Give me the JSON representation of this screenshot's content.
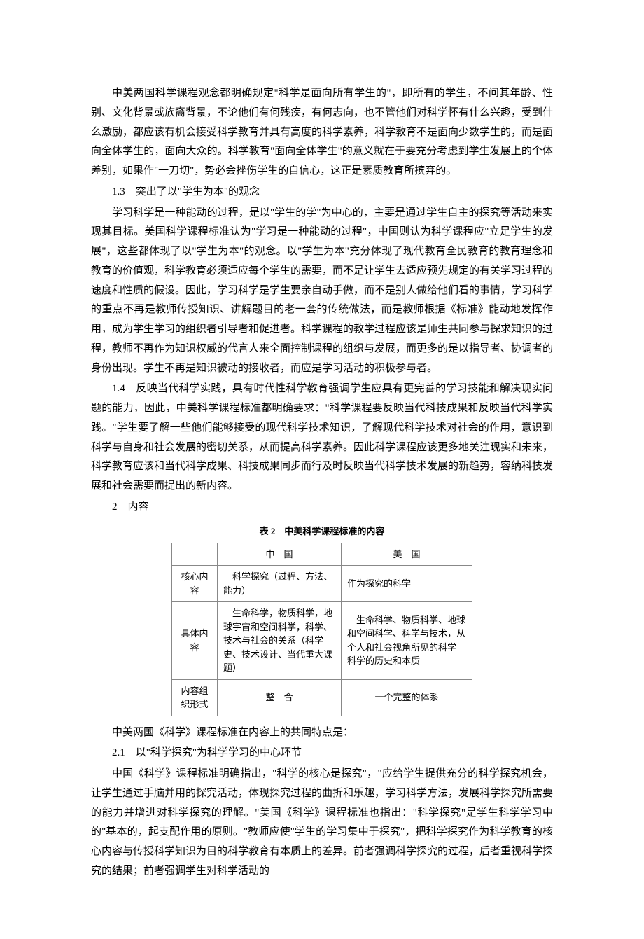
{
  "paragraphs": {
    "p1": "中美两国科学课程观念都明确规定\"科学是面向所有学生的\"，即所有的学生，不问其年龄、性别、文化背景或族裔背景，不论他们有何残疾，有何志向，也不管他们对科学怀有什么兴趣，受到什么激励，都应该有机会接受科学教育并具有高度的科学素养，科学教育不是面向少数学生的，而是面向全体学生的，面向大众的。科学教育\"面向全体学生\"的意义就在于要充分考虑到学生发展上的个体差别，如果作\"一刀切\"，势必会挫伤学生的自信心，这正是素质教育所摈弃的。",
    "h13": "1.3　突出了以\"学生为本\"的观念",
    "p2": "学习科学是一种能动的过程，是以\"学生的学\"为中心的，主要是通过学生自主的探究等活动来实现其目标。美国科学课程标准认为\"学习是一种能动的过程\"，中国则认为科学课程应\"立足学生的发展\"，这些都体现了以\"学生为本\"的观念。以\"学生为本\"充分体现了现代教育全民教育的教育理念和教育的价值观，科学教育必须适应每个学生的需要，而不是让学生去适应预先规定的有关学习过程的速度和性质的假设。因此，学习科学是学生要亲自动手做，而不是别人做给他们看的事情，学习科学的重点不再是教师传授知识、讲解题目的老一套的传统做法，而是教师根据《标准》能动地发挥作用，成为学生学习的组织者引导者和促进者。科学课程的教学过程应该是师生共同参与探求知识的过程，教师不再作为知识权威的代言人来全面控制课程的组织与发展，而更多的是以指导者、协调者的身份出现。学生不再是知识被动的接收者，而应是学习活动的积极参与者。",
    "h14": "1.4　反映当代科学实践，具有时代性科学教育强调学生应具有更完善的学习技能和解决现实问题的能力，因此，中美科学课程标准都明确要求：\"科学课程要反映当代科技成果和反映当代科学实践。\"学生要了解一些他们能够接受的现代科学技术知识，了解现代科学技术对社会的作用，意识到科学与自身和社会发展的密切关系，从而提高科学素养。因此科学课程应该更多地关注现实和未来，科学教育应该和当代科学成果、科技成果同步而行及时反映当代科学技术发展的新趋势，容纳科技发展和社会需要而提出的新内容。",
    "sec2": "2　内容"
  },
  "table": {
    "caption": "表 2　中美科学课程标准的内容",
    "head_cn": "中　国",
    "head_us": "美　国",
    "row1_label": "核心内容",
    "row1_cn": "科学探究（过程、方法、能力）",
    "row1_us": "作为探究的科学",
    "row2_label": "具体内容",
    "row2_cn": "生命科学，物质科学，地球宇宙和空间科学，科学、技术与社会的关系（科学史、技术设计、当代重大课题）",
    "row2_us": "生命科学、物质科学、地球和空间科学、科学与技术，从个人和社会视角所见的科学\n科学的历史和本质",
    "row3_label": "内容组织形式",
    "row3_cn": "整　合",
    "row3_us": "一个完整的体系"
  },
  "after": {
    "p3": "中美两国《科学》课程标准在内容上的共同特点是：",
    "h21": "2.1　以\"科学探究\"为科学学习的中心环节",
    "p4": "中国《科学》课程标准明确指出，\"科学的核心是探究\"，\"应给学生提供充分的科学探究机会，让学生通过手脑并用的探究活动，体现探究过程的曲折和乐趣，学习科学方法，发展科学探究所需要的能力并增进对科学探究的理解。\"美国《科学》课程标准也指出：\"科学探究\"是学生科学学习中的\"基本的，起支配作用的原则。\"教师应使\"学生的学习集中于探究\"，把科学探究作为科学教育的核心内容与传授科学知识为目的科学教育有本质上的差异。前者强调科学探究的过程，后者重视科学探究的结果；前者强调学生对科学活动的"
  }
}
